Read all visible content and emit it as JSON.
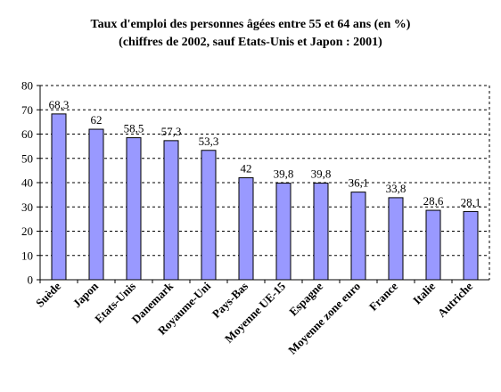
{
  "chart_data": {
    "type": "bar",
    "title": "Taux d'emploi des personnes âgées entre 55 et 64 ans (en %)",
    "subtitle": "(chiffres de 2002, sauf Etats-Unis et Japon : 2001)",
    "xlabel": "",
    "ylabel": "",
    "ylim": [
      0,
      80
    ],
    "yticks": [
      "0",
      "10",
      "20",
      "30",
      "40",
      "50",
      "60",
      "70",
      "80"
    ],
    "grid": true,
    "categories": [
      "Suède",
      "Japon",
      "Etats-Unis",
      "Danemark",
      "Royaume-Uni",
      "Pays-Bas",
      "Moyenne UE-15",
      "Espagne",
      "Moyenne zone euro",
      "France",
      "Italie",
      "Autriche"
    ],
    "values": [
      68.3,
      62,
      58.5,
      57.3,
      53.3,
      42,
      39.8,
      39.8,
      36.1,
      33.8,
      28.6,
      28.1
    ],
    "value_labels": [
      "68,3",
      "62",
      "58,5",
      "57,3",
      "53,3",
      "42",
      "39,8",
      "39,8",
      "36,1",
      "33,8",
      "28,6",
      "28,1"
    ],
    "colors": {
      "bar_fill": "#9999ff",
      "bar_stroke": "#000000"
    }
  }
}
